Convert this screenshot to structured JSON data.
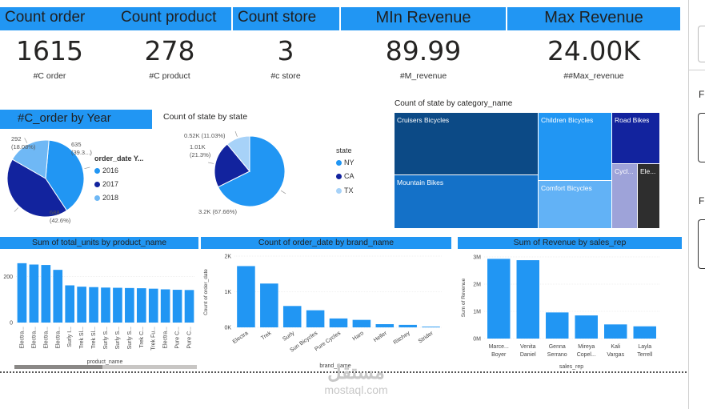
{
  "kpis": [
    {
      "title": "Count order",
      "value": "1615",
      "sub": "#C order"
    },
    {
      "title": "Count product",
      "value": "278",
      "sub": "#C product"
    },
    {
      "title": "Count store",
      "value": "3",
      "sub": "#c store"
    },
    {
      "title": "MIn Revenue",
      "value": "89.99",
      "sub": "#M_revenue"
    },
    {
      "title": "Max Revenue",
      "value": "24.00K",
      "sub": "##Max_revenue"
    }
  ],
  "colors": {
    "accent": "#2196f3",
    "navy": "#12239e",
    "light": "#6fb8f5",
    "pale": "#a7d2f8"
  },
  "right_panel": {
    "letter1": "F",
    "letter2": "F"
  },
  "watermark": {
    "arabic": "مستقل",
    "latin": "mostaql.com"
  },
  "chart_data": [
    {
      "id": "orders_by_year",
      "type": "pie",
      "title": "#C_order by Year",
      "legend_title": "order_date Y...",
      "categories": [
        "2016",
        "2017",
        "2018"
      ],
      "values": [
        635,
        688,
        292
      ],
      "labels": [
        "635 (39.3...)",
        "688 (42.6%)",
        "292 (18.08%)"
      ],
      "colors": [
        "#2196f3",
        "#12239e",
        "#6fb8f5"
      ]
    },
    {
      "id": "state_count",
      "type": "pie",
      "title": "Count of state by state",
      "legend_title": "state",
      "categories": [
        "NY",
        "CA",
        "TX"
      ],
      "values": [
        3200,
        1010,
        520
      ],
      "labels": [
        "3.2K (67.66%)",
        "1.01K (21.3%)",
        "0.52K (11.03%)"
      ],
      "colors": [
        "#2196f3",
        "#12239e",
        "#a7d2f8"
      ]
    },
    {
      "id": "state_by_category",
      "type": "treemap",
      "title": "Count of state by category_name",
      "categories": [
        "Cruisers Bicycles",
        "Mountain Bikes",
        "Children Bicycles",
        "Comfort Bicycles",
        "Road Bikes",
        "Cycl...",
        "Ele..."
      ]
    },
    {
      "id": "units_by_product",
      "type": "bar",
      "title": "Sum of total_units by product_name",
      "xlabel": "product_name",
      "y_ticks": [
        "200",
        "0"
      ],
      "categories": [
        "Electra...",
        "Electra...",
        "Electra...",
        "Electra...",
        "Surly I...",
        "Trek Sl...",
        "Trek Sl...",
        "Surly S...",
        "Surly S...",
        "Surly S...",
        "Trek C...",
        "Trek Fu...",
        "Electra...",
        "Pure C...",
        "Pure C..."
      ],
      "values": [
        268,
        262,
        260,
        238,
        168,
        162,
        160,
        158,
        157,
        156,
        155,
        153,
        150,
        148,
        147
      ],
      "ylim": [
        0,
        300
      ]
    },
    {
      "id": "orders_by_brand",
      "type": "bar",
      "title": "Count of order_date by brand_name",
      "xlabel": "brand_name",
      "ylabel": "Count of order_date",
      "y_ticks": [
        "2K",
        "1K",
        "0K"
      ],
      "categories": [
        "Electra",
        "Trek",
        "Surly",
        "Sun Bicycles",
        "Pure Cycles",
        "Haro",
        "Heller",
        "Ritchey",
        "Strider"
      ],
      "values": [
        1720,
        1230,
        600,
        480,
        250,
        210,
        90,
        70,
        20
      ],
      "ylim": [
        0,
        2000
      ]
    },
    {
      "id": "revenue_by_rep",
      "type": "bar",
      "title": "Sum of Revenue by sales_rep",
      "xlabel": "sales_rep",
      "ylabel": "Sum of Revenue",
      "y_ticks": [
        "3M",
        "2M",
        "1M",
        "0M"
      ],
      "categories": [
        "Marce... Boyer",
        "Venita Daniel",
        "Genna Serrano",
        "Mireya Copel...",
        "Kali Vargas",
        "Layla Terrell"
      ],
      "values": [
        2930000,
        2880000,
        960000,
        850000,
        520000,
        450000
      ],
      "ylim": [
        0,
        3000000
      ]
    }
  ]
}
